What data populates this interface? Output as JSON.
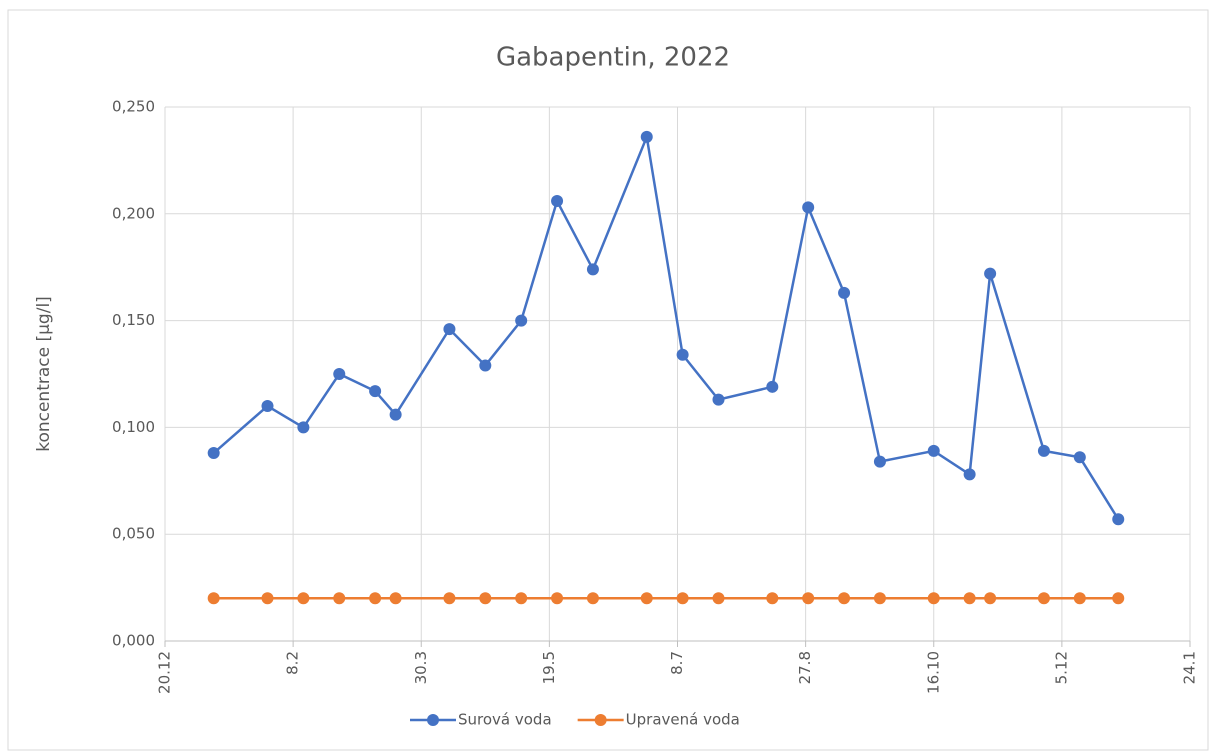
{
  "chart_data": {
    "type": "line",
    "title": "Gabapentin, 2022",
    "y_label": "koncentrace [µg/l]",
    "x": [
      "2022-01-08",
      "2022-01-29",
      "2022-02-12",
      "2022-02-26",
      "2022-03-12",
      "2022-03-20",
      "2022-04-10",
      "2022-04-24",
      "2022-05-08",
      "2022-05-22",
      "2022-06-05",
      "2022-06-26",
      "2022-07-10",
      "2022-07-24",
      "2022-08-14",
      "2022-08-28",
      "2022-09-11",
      "2022-09-25",
      "2022-10-16",
      "2022-10-30",
      "2022-11-07",
      "2022-11-28",
      "2022-12-12",
      "2022-12-27"
    ],
    "series": [
      {
        "name": "Surová voda",
        "color": "#4472c4",
        "values": [
          0.088,
          0.11,
          0.1,
          0.125,
          0.117,
          0.106,
          0.146,
          0.129,
          0.15,
          0.206,
          0.174,
          0.236,
          0.134,
          0.113,
          0.119,
          0.203,
          0.163,
          0.084,
          0.089,
          0.078,
          0.172,
          0.089,
          0.086,
          0.057
        ]
      },
      {
        "name": "Upravená voda",
        "color": "#ed7d31",
        "values": [
          0.02,
          0.02,
          0.02,
          0.02,
          0.02,
          0.02,
          0.02,
          0.02,
          0.02,
          0.02,
          0.02,
          0.02,
          0.02,
          0.02,
          0.02,
          0.02,
          0.02,
          0.02,
          0.02,
          0.02,
          0.02,
          0.02,
          0.02,
          0.02
        ]
      }
    ],
    "xlim": [
      "2021-12-20",
      "2023-01-24"
    ],
    "xticks": [
      {
        "value": "2021-12-20",
        "label": "20.12"
      },
      {
        "value": "2022-02-08",
        "label": "8.2"
      },
      {
        "value": "2022-03-30",
        "label": "30.3"
      },
      {
        "value": "2022-05-19",
        "label": "19.5"
      },
      {
        "value": "2022-07-08",
        "label": "8.7"
      },
      {
        "value": "2022-08-27",
        "label": "27.8"
      },
      {
        "value": "2022-10-16",
        "label": "16.10"
      },
      {
        "value": "2022-12-05",
        "label": "5.12"
      },
      {
        "value": "2023-01-24",
        "label": "24.1"
      }
    ],
    "ylim": [
      0,
      0.25
    ],
    "yticks": [
      {
        "value": 0,
        "label": "0,000"
      },
      {
        "value": 0.05,
        "label": "0,050"
      },
      {
        "value": 0.1,
        "label": "0,100"
      },
      {
        "value": 0.15,
        "label": "0,150"
      },
      {
        "value": 0.2,
        "label": "0,200"
      },
      {
        "value": 0.25,
        "label": "0,250"
      }
    ],
    "grid": true,
    "legend": "bottom"
  }
}
